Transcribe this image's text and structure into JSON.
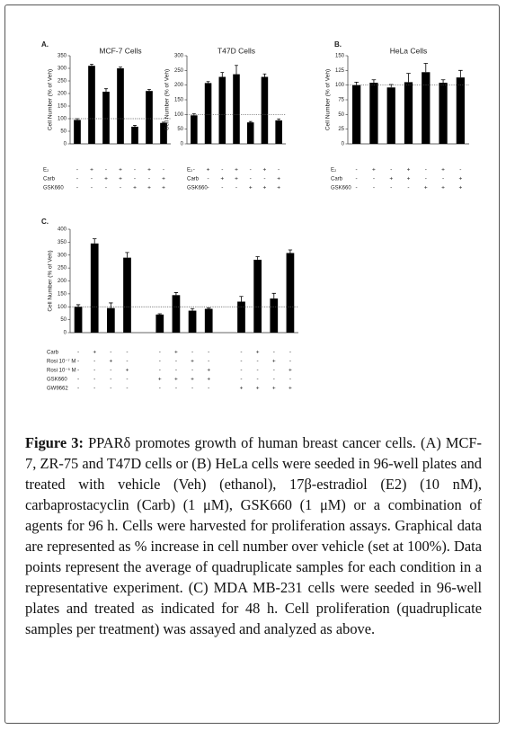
{
  "panels": [
    "A.",
    "B.",
    "C."
  ],
  "chart_data": [
    {
      "type": "bar",
      "title": "MCF-7 Cells",
      "y_label": "Cell Number (% of Veh)",
      "categories": [
        null,
        null,
        null,
        null,
        null,
        null,
        null
      ],
      "values": [
        95,
        310,
        207,
        300,
        68,
        210,
        83
      ],
      "errors": [
        5,
        6,
        12,
        5,
        5,
        6,
        3
      ],
      "color": "#000000",
      "ylim": [
        0,
        350
      ],
      "yticks": [
        0,
        50,
        100,
        150,
        200,
        250,
        300,
        350
      ],
      "reference_line": 100,
      "treatments": [
        {
          "name": "E₂",
          "signs": [
            "-",
            "+",
            "-",
            "+",
            "-",
            "+",
            "-"
          ]
        },
        {
          "name": "Carb",
          "signs": [
            "-",
            "-",
            "+",
            "+",
            "-",
            "-",
            "+"
          ]
        },
        {
          "name": "GSK660",
          "signs": [
            "-",
            "-",
            "-",
            "-",
            "+",
            "+",
            "+"
          ]
        }
      ]
    },
    {
      "type": "bar",
      "title": "T47D Cells",
      "y_label": "Cell Number (% of Veh)",
      "categories": [
        null,
        null,
        null,
        null,
        null,
        null,
        null
      ],
      "values": [
        97,
        207,
        228,
        237,
        73,
        228,
        80
      ],
      "errors": [
        5,
        5,
        15,
        30,
        3,
        10,
        5
      ],
      "color": "#000000",
      "ylim": [
        0,
        300
      ],
      "yticks": [
        0,
        50,
        100,
        150,
        200,
        250,
        300
      ],
      "reference_line": 100,
      "treatments": [
        {
          "name": "E₂",
          "signs": [
            "-",
            "+",
            "-",
            "+",
            "-",
            "+",
            "-"
          ]
        },
        {
          "name": "Carb",
          "signs": [
            "-",
            "-",
            "+",
            "+",
            "-",
            "-",
            "+"
          ]
        },
        {
          "name": "GSK660",
          "signs": [
            "-",
            "-",
            "-",
            "-",
            "+",
            "+",
            "+"
          ]
        }
      ]
    },
    {
      "type": "bar",
      "title": "HeLa Cells",
      "y_label": "Cell Number (% of Veh)",
      "categories": [
        null,
        null,
        null,
        null,
        null,
        null,
        null
      ],
      "values": [
        100,
        104,
        96,
        105,
        122,
        104,
        113
      ],
      "errors": [
        5,
        5,
        5,
        15,
        15,
        5,
        12
      ],
      "color": "#000000",
      "ylim": [
        0,
        150
      ],
      "yticks": [
        0,
        25,
        50,
        75,
        100,
        125,
        150
      ],
      "reference_line": 100,
      "treatments": [
        {
          "name": "E₂",
          "signs": [
            "-",
            "+",
            "-",
            "+",
            "-",
            "+",
            "-"
          ]
        },
        {
          "name": "Carb",
          "signs": [
            "-",
            "-",
            "+",
            "+",
            "-",
            "-",
            "+"
          ]
        },
        {
          "name": "GSK660",
          "signs": [
            "-",
            "-",
            "-",
            "-",
            "+",
            "+",
            "+"
          ]
        }
      ]
    },
    {
      "type": "bar",
      "y_label": "Cell Number (% of Veh)",
      "categories": [
        null,
        null,
        null,
        null,
        null,
        null,
        null,
        null,
        null,
        null,
        null,
        null
      ],
      "values": [
        100,
        345,
        95,
        290,
        70,
        145,
        85,
        92,
        120,
        282,
        132,
        308
      ],
      "errors": [
        8,
        18,
        20,
        20,
        3,
        10,
        8,
        3,
        20,
        12,
        20,
        12
      ],
      "color": "#000000",
      "ylim": [
        0,
        400
      ],
      "yticks": [
        0,
        50,
        100,
        150,
        200,
        250,
        300,
        350,
        400
      ],
      "reference_line": 100,
      "treatments": [
        {
          "name": "Carb",
          "signs": [
            "-",
            "+",
            "-",
            "-",
            "-",
            "+",
            "-",
            "-",
            "-",
            "+",
            "-",
            "-"
          ]
        },
        {
          "name": "Rosi 10⁻⁷ M",
          "signs": [
            "-",
            "-",
            "+",
            "-",
            "-",
            "-",
            "+",
            "-",
            "-",
            "-",
            "+",
            "-"
          ]
        },
        {
          "name": "Rosi 10⁻⁵ M",
          "signs": [
            "-",
            "-",
            "-",
            "+",
            "-",
            "-",
            "-",
            "+",
            "-",
            "-",
            "-",
            "+"
          ]
        },
        {
          "name": "GSK660",
          "signs": [
            "-",
            "-",
            "-",
            "-",
            "+",
            "+",
            "+",
            "+",
            "-",
            "-",
            "-",
            "-"
          ]
        },
        {
          "name": "GW9662",
          "signs": [
            "-",
            "-",
            "-",
            "-",
            "-",
            "-",
            "-",
            "-",
            "+",
            "+",
            "+",
            "+"
          ]
        }
      ]
    }
  ],
  "caption": {
    "label": "Figure 3:",
    "text": "PPARδ promotes growth of human breast cancer cells. (A) MCF-7, ZR-75 and T47D cells or (B) HeLa cells were seeded in 96-well plates and treated with vehicle (Veh) (ethanol), 17β-estradiol (E2) (10 nM), carbaprostacyclin (Carb) (1 μM), GSK660 (1 μM) or a combination of agents for 96 h. Cells were harvested for proliferation assays. Graphical data are represented as % increase in cell number over vehicle (set at 100%). Data points represent the average of quadruplicate samples for each condition in a representative experiment. (C) MDA MB-231 cells were seeded in 96-well plates and treated as indicated for 48 h. Cell proliferation (quadruplicate samples per treatment) was assayed and analyzed as above."
  }
}
